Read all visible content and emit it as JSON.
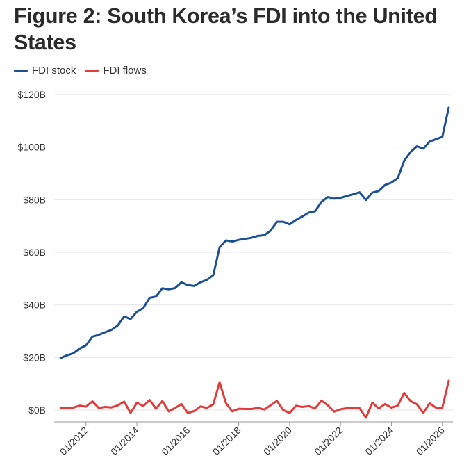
{
  "title": "Figure 2: South Korea’s FDI into the United States",
  "colors": {
    "stock": "#1a4f96",
    "flows": "#e03c3c",
    "grid": "#e6e6e6",
    "axis": "#999999"
  },
  "chart_data": {
    "type": "line",
    "title": "Figure 2: South Korea’s FDI into the United States",
    "xlabel": "",
    "ylabel": "",
    "ylim": [
      0,
      120
    ],
    "yticks": [
      {
        "value": 0,
        "label": "$0B"
      },
      {
        "value": 20,
        "label": "$20B"
      },
      {
        "value": 40,
        "label": "$40B"
      },
      {
        "value": 60,
        "label": "$60B"
      },
      {
        "value": 80,
        "label": "$80B"
      },
      {
        "value": 100,
        "label": "$100B"
      },
      {
        "value": 120,
        "label": "$120B"
      }
    ],
    "xlim": [
      "2010-10",
      "2026-06"
    ],
    "xticks": [
      {
        "value": "2012-01",
        "label": "01/2012"
      },
      {
        "value": "2014-01",
        "label": "01/2014"
      },
      {
        "value": "2016-01",
        "label": "01/2016"
      },
      {
        "value": "2018-01",
        "label": "01/2018"
      },
      {
        "value": "2020-01",
        "label": "01/2020"
      },
      {
        "value": "2022-01",
        "label": "01/2022"
      },
      {
        "value": "2024-01",
        "label": "01/2024"
      },
      {
        "value": "2026-01",
        "label": "01/2026"
      }
    ],
    "grid": true,
    "legend": "top-left",
    "x": [
      "2011-01",
      "2011-04",
      "2011-07",
      "2011-10",
      "2012-01",
      "2012-04",
      "2012-07",
      "2012-10",
      "2013-01",
      "2013-04",
      "2013-07",
      "2013-10",
      "2014-01",
      "2014-04",
      "2014-07",
      "2014-10",
      "2015-01",
      "2015-04",
      "2015-07",
      "2015-10",
      "2016-01",
      "2016-04",
      "2016-07",
      "2016-10",
      "2017-01",
      "2017-04",
      "2017-07",
      "2017-10",
      "2018-01",
      "2018-04",
      "2018-07",
      "2018-10",
      "2019-01",
      "2019-04",
      "2019-07",
      "2019-10",
      "2020-01",
      "2020-04",
      "2020-07",
      "2020-10",
      "2021-01",
      "2021-04",
      "2021-07",
      "2021-10",
      "2022-01",
      "2022-04",
      "2022-07",
      "2022-10",
      "2023-01",
      "2023-04",
      "2023-07",
      "2023-10",
      "2024-01",
      "2024-04",
      "2024-07",
      "2024-10",
      "2025-01",
      "2025-04",
      "2025-07",
      "2025-10",
      "2026-01",
      "2026-04"
    ],
    "series": [
      {
        "name": "FDI stock",
        "values": [
          19.8,
          20.8,
          21.6,
          23.4,
          24.6,
          27.9,
          28.6,
          29.6,
          30.5,
          32.2,
          35.6,
          34.6,
          37.4,
          38.8,
          42.7,
          43.2,
          46.3,
          45.9,
          46.4,
          48.6,
          47.5,
          47.2,
          48.6,
          49.5,
          51.3,
          61.9,
          64.5,
          64.1,
          64.7,
          65.1,
          65.5,
          66.2,
          66.5,
          68.2,
          71.6,
          71.6,
          70.6,
          72.3,
          73.6,
          75.1,
          75.6,
          79.2,
          81.0,
          80.4,
          80.7,
          81.4,
          82.1,
          82.8,
          79.9,
          82.7,
          83.3,
          85.6,
          86.5,
          88.2,
          94.8,
          98.1,
          100.3,
          99.4,
          102.1,
          103.0,
          103.9,
          115.0
        ]
      },
      {
        "name": "FDI flows",
        "values": [
          0.8,
          0.9,
          0.9,
          1.7,
          1.3,
          3.3,
          0.8,
          1.2,
          1.0,
          1.8,
          3.2,
          -1.1,
          2.8,
          1.5,
          3.8,
          0.5,
          3.4,
          -0.5,
          0.8,
          2.3,
          -1.1,
          -0.4,
          1.4,
          0.8,
          2.2,
          10.6,
          2.6,
          -0.5,
          0.5,
          0.4,
          0.4,
          0.8,
          0.2,
          1.8,
          3.5,
          0.0,
          -1.1,
          1.6,
          1.2,
          1.5,
          0.6,
          3.6,
          1.8,
          -0.6,
          0.3,
          0.7,
          0.7,
          0.7,
          -2.9,
          2.8,
          0.6,
          2.3,
          0.9,
          1.7,
          6.5,
          3.4,
          2.2,
          -1.1,
          2.6,
          0.9,
          0.9,
          11.1
        ]
      }
    ]
  }
}
